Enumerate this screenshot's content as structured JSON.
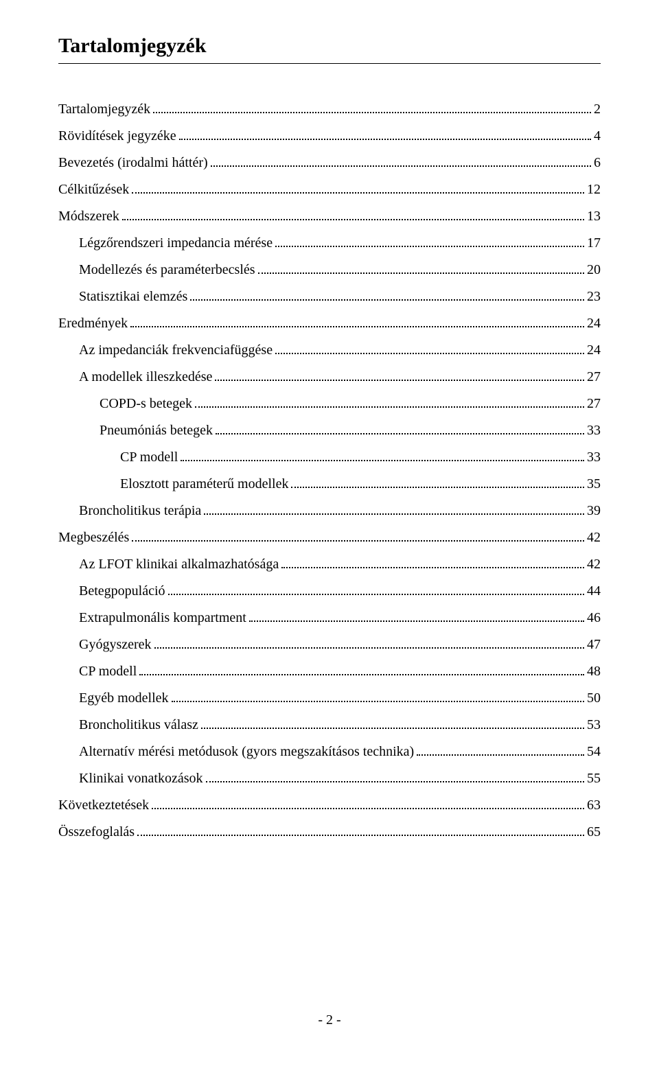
{
  "heading": "Tartalomjegyzék",
  "footer": "- 2 -",
  "toc_entries": [
    {
      "label": "Tartalomjegyzék",
      "page": "2",
      "indent": 0
    },
    {
      "label": "Rövidítések jegyzéke",
      "page": "4",
      "indent": 0
    },
    {
      "label": "Bevezetés (irodalmi háttér)",
      "page": "6",
      "indent": 0
    },
    {
      "label": "Célkitűzések",
      "page": "12",
      "indent": 0
    },
    {
      "label": "Módszerek",
      "page": "13",
      "indent": 0
    },
    {
      "label": "Légzőrendszeri impedancia mérése",
      "page": "17",
      "indent": 1
    },
    {
      "label": "Modellezés és paraméterbecslés",
      "page": "20",
      "indent": 1
    },
    {
      "label": "Statisztikai elemzés",
      "page": "23",
      "indent": 1
    },
    {
      "label": "Eredmények",
      "page": "24",
      "indent": 0
    },
    {
      "label": "Az impedanciák frekvenciafüggése",
      "page": "24",
      "indent": 1
    },
    {
      "label": "A modellek illeszkedése",
      "page": "27",
      "indent": 1
    },
    {
      "label": "COPD-s betegek",
      "page": "27",
      "indent": 2
    },
    {
      "label": "Pneumóniás betegek",
      "page": "33",
      "indent": 2
    },
    {
      "label": "CP modell",
      "page": "33",
      "indent": 3
    },
    {
      "label": "Elosztott paraméterű modellek",
      "page": "35",
      "indent": 3
    },
    {
      "label": "Broncholitikus terápia",
      "page": "39",
      "indent": 1
    },
    {
      "label": "Megbeszélés",
      "page": "42",
      "indent": 0
    },
    {
      "label": "Az LFOT klinikai alkalmazhatósága",
      "page": "42",
      "indent": 1
    },
    {
      "label": "Betegpopuláció",
      "page": "44",
      "indent": 1
    },
    {
      "label": "Extrapulmonális kompartment",
      "page": "46",
      "indent": 1
    },
    {
      "label": "Gyógyszerek",
      "page": "47",
      "indent": 1
    },
    {
      "label": "CP modell",
      "page": "48",
      "indent": 1
    },
    {
      "label": "Egyéb modellek",
      "page": "50",
      "indent": 1
    },
    {
      "label": "Broncholitikus válasz",
      "page": "53",
      "indent": 1
    },
    {
      "label": "Alternatív mérési metódusok (gyors megszakításos technika)",
      "page": "54",
      "indent": 1
    },
    {
      "label": "Klinikai vonatkozások",
      "page": "55",
      "indent": 1
    },
    {
      "label": "Következtetések",
      "page": "63",
      "indent": 0
    },
    {
      "label": "Összefoglalás",
      "page": "65",
      "indent": 0
    }
  ]
}
